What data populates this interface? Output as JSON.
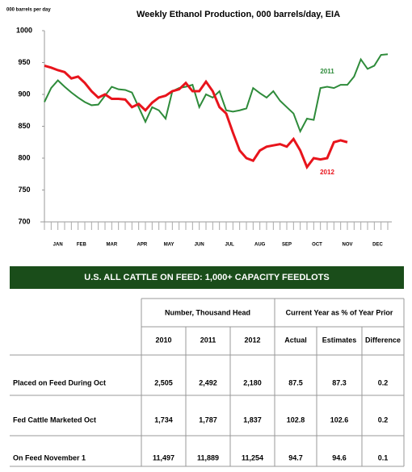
{
  "chart_data": {
    "type": "line",
    "title": "Weekly Ethanol Production, 000 barrels/day,  EIA",
    "y_label": "000 barrels per day",
    "x": [
      1,
      2,
      3,
      4,
      5,
      6,
      7,
      8,
      9,
      10,
      11,
      12,
      13,
      14,
      15,
      16,
      17,
      18,
      19,
      20,
      21,
      22,
      23,
      24,
      25,
      26,
      27,
      28,
      29,
      30,
      31,
      32,
      33,
      34,
      35,
      36,
      37,
      38,
      39,
      40,
      41,
      42,
      43,
      44,
      45,
      46,
      47,
      48,
      49,
      50,
      51,
      52
    ],
    "xlim": [
      1,
      52
    ],
    "xticks": [
      {
        "value": 3,
        "label": "JAN"
      },
      {
        "value": 6.5,
        "label": "FEB"
      },
      {
        "value": 11,
        "label": "MAR"
      },
      {
        "value": 15.5,
        "label": "APR"
      },
      {
        "value": 19.5,
        "label": "MAY"
      },
      {
        "value": 24,
        "label": "JUN"
      },
      {
        "value": 28.5,
        "label": "JUL"
      },
      {
        "value": 33,
        "label": "AUG"
      },
      {
        "value": 37,
        "label": "SEP"
      },
      {
        "value": 41.5,
        "label": "OCT"
      },
      {
        "value": 46,
        "label": "NOV"
      },
      {
        "value": 50.5,
        "label": "DEC"
      }
    ],
    "ylim": [
      700,
      1000
    ],
    "yticks": [
      700,
      750,
      800,
      850,
      900,
      950,
      1000
    ],
    "series": [
      {
        "name": "2011",
        "color": "#2e8b3a",
        "values": [
          888,
          910,
          922,
          912,
          903,
          895,
          888,
          883,
          884,
          898,
          912,
          908,
          907,
          903,
          880,
          857,
          880,
          875,
          862,
          905,
          910,
          912,
          915,
          880,
          900,
          895,
          905,
          875,
          873,
          875,
          878,
          910,
          902,
          895,
          905,
          890,
          880,
          870,
          842,
          862,
          860,
          910,
          912,
          910,
          915,
          915,
          928,
          955,
          940,
          945,
          962,
          963
        ]
      },
      {
        "name": "2012",
        "color": "#e8141c",
        "values": [
          945,
          942,
          938,
          935,
          925,
          928,
          918,
          905,
          895,
          900,
          893,
          893,
          892,
          880,
          885,
          875,
          887,
          895,
          898,
          905,
          908,
          918,
          905,
          905,
          920,
          905,
          880,
          870,
          840,
          812,
          800,
          796,
          812,
          818,
          820,
          822,
          818,
          830,
          812,
          786,
          800,
          798,
          800,
          825,
          828,
          825,
          null,
          null,
          null,
          null,
          null,
          null
        ]
      }
    ]
  },
  "table": {
    "banner": "U.S. ALL CATTLE ON FEED: 1,000+ CAPACITY FEEDLOTS",
    "groups": [
      "Number, Thousand Head",
      "Current Year as % of Year Prior"
    ],
    "columns": [
      "2010",
      "2011",
      "2012",
      "Actual",
      "Estimates",
      "Difference"
    ],
    "rows": [
      [
        "Placed on Feed During Oct",
        "2,505",
        "2,492",
        "2,180",
        "87.5",
        "87.3",
        "0.2"
      ],
      [
        "Fed Cattle Marketed Oct",
        "1,734",
        "1,787",
        "1,837",
        "102.8",
        "102.6",
        "0.2"
      ],
      [
        "On Feed November 1",
        "11,497",
        "11,889",
        "11,254",
        "94.7",
        "94.6",
        "0.1"
      ]
    ]
  }
}
